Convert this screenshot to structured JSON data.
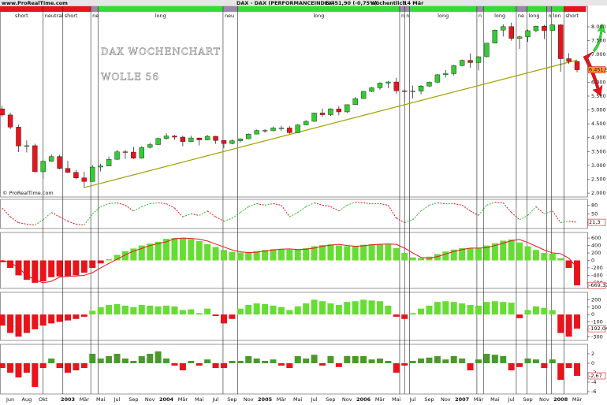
{
  "header": {
    "source": "www.ProRealTime.com",
    "title": "DAX - DAX (PERFORMANCEINDEX)",
    "quote": "6.451,90 (-0,75%)",
    "period": "Wöchentlich",
    "date": "14 Mär"
  },
  "chart_data": [
    {
      "type": "candlestick",
      "categories": [
        null,
        "Jun",
        null,
        "Aug",
        null,
        "Okt",
        null,
        null,
        "2003",
        null,
        "Mär",
        null,
        "Mai",
        null,
        "Jul",
        null,
        "Sep",
        null,
        "Nov",
        null,
        "2004",
        null,
        "Mär",
        null,
        "Mai",
        null,
        "Jul",
        null,
        "Sep",
        null,
        "Nov",
        null,
        "2005",
        null,
        "Mär",
        null,
        "Mai",
        null,
        "Jul",
        null,
        "Sep",
        null,
        "Nov",
        null,
        "2006",
        null,
        "Mär",
        null,
        "Mai",
        null,
        "Jul",
        null,
        "Sep",
        null,
        "Nov",
        null,
        "2007",
        null,
        "Mär",
        null,
        "Mai",
        null,
        "Jul",
        null,
        "Sep",
        null,
        "Nov",
        null,
        "2008",
        null,
        "Mär"
      ],
      "open": [
        5040,
        4820,
        4380,
        3700,
        3710,
        2770,
        3150,
        3320,
        2890,
        2750,
        2550,
        2420,
        2940,
        2980,
        3220,
        3490,
        3480,
        3260,
        3650,
        3750,
        3970,
        4060,
        4020,
        3860,
        3990,
        3920,
        4050,
        3900,
        3790,
        3890,
        3960,
        4130,
        4260,
        4250,
        4350,
        4350,
        4180,
        4460,
        4590,
        4890,
        4830,
        5040,
        4930,
        5190,
        5410,
        5670,
        5800,
        5970,
        6010,
        5690,
        5680,
        5680,
        5860,
        6000,
        6270,
        6310,
        6600,
        6790,
        6710,
        6920,
        7410,
        7880,
        8010,
        7580,
        7640,
        7860,
        8020,
        7870,
        8070,
        6850,
        6750
      ],
      "high": [
        5150,
        4900,
        4470,
        3900,
        3780,
        3200,
        3400,
        3380,
        3160,
        2840,
        2770,
        3010,
        3060,
        3320,
        3560,
        3560,
        3660,
        3690,
        3820,
        4000,
        4160,
        4100,
        4070,
        4070,
        4000,
        4100,
        4060,
        3910,
        3930,
        3980,
        4150,
        4290,
        4310,
        4400,
        4430,
        4410,
        4490,
        4630,
        4900,
        5050,
        5060,
        5140,
        5200,
        5470,
        5690,
        5830,
        6000,
        6050,
        6160,
        5760,
        5880,
        5900,
        6020,
        6300,
        6440,
        6630,
        6820,
        7040,
        6940,
        7420,
        7900,
        8090,
        8150,
        7680,
        7900,
        8040,
        8070,
        8100,
        8100,
        7050,
        6780
      ],
      "low": [
        4750,
        4300,
        3480,
        3470,
        2750,
        2520,
        3130,
        2860,
        2720,
        2500,
        2190,
        2410,
        2780,
        2970,
        3200,
        3230,
        3230,
        3240,
        3610,
        3740,
        3930,
        3920,
        3690,
        3850,
        3720,
        3900,
        3780,
        3620,
        3760,
        3830,
        3950,
        4120,
        4180,
        4230,
        4240,
        4140,
        4170,
        4450,
        4580,
        4760,
        4790,
        4810,
        4900,
        5180,
        5400,
        5640,
        5730,
        5790,
        5590,
        5290,
        5420,
        5560,
        5830,
        5960,
        6170,
        6240,
        6570,
        6520,
        6430,
        6900,
        7400,
        7650,
        7500,
        7200,
        7460,
        7800,
        7560,
        7850,
        6380,
        6660,
        6360
      ],
      "close": [
        4820,
        4380,
        3700,
        3710,
        2770,
        3150,
        3320,
        2890,
        2750,
        2550,
        2420,
        2940,
        2980,
        3220,
        3490,
        3480,
        3260,
        3650,
        3750,
        3970,
        4060,
        4020,
        3860,
        3990,
        3920,
        4050,
        3900,
        3790,
        3890,
        3960,
        4130,
        4260,
        4250,
        4350,
        4350,
        4180,
        4460,
        4590,
        4890,
        4830,
        5040,
        4930,
        5190,
        5410,
        5670,
        5800,
        5970,
        6010,
        5690,
        5680,
        5680,
        5860,
        6000,
        6270,
        6310,
        6600,
        6790,
        6710,
        6920,
        7410,
        7880,
        8010,
        7580,
        7640,
        7860,
        8020,
        7870,
        8070,
        6850,
        6750,
        6450
      ],
      "ylim": [
        1860,
        8740
      ],
      "yticks": [
        {
          "value": 2000,
          "label": "2.000"
        },
        {
          "value": 2500,
          "label": "2.500"
        },
        {
          "value": 3000,
          "label": "3.000"
        },
        {
          "value": 3500,
          "label": "3.500"
        },
        {
          "value": 4000,
          "label": "4.000"
        },
        {
          "value": 4500,
          "label": "4.500"
        },
        {
          "value": 5000,
          "label": "5.000"
        },
        {
          "value": 5500,
          "label": "5.500"
        },
        {
          "value": 6000,
          "label": "6.000"
        },
        {
          "value": 6500,
          "label": "6.500"
        },
        {
          "value": 7000,
          "label": "7.000"
        },
        {
          "value": 7500,
          "label": "7.500"
        },
        {
          "value": 8000,
          "label": "8.000"
        }
      ],
      "colors": {
        "up": "#33cc33",
        "down": "#e8141c"
      },
      "annotations": [
        "DAX WOCHENCHART",
        "WOLLE 56"
      ],
      "copyright": "© ProRealTime.com",
      "last_price": {
        "value": 6451.9,
        "label": "6.451,90"
      },
      "trendline": {
        "x": [
          10,
          70
        ],
        "y": [
          2200,
          6800
        ],
        "color": "#a0a000"
      },
      "signals": {
        "boundaries": [
          -0.25,
          5,
          7.4,
          10.8,
          11.7,
          26.9,
          28.7,
          48.4,
          49,
          49.6,
          57.8,
          58.6,
          62.6,
          63.9,
          66.3,
          66.9,
          68.4,
          71.1
        ],
        "segments": [
          {
            "label": "short",
            "color": "#e8141c"
          },
          {
            "label": "neutral",
            "color": "#e8141c"
          },
          {
            "label": "short",
            "color": "#e8141c"
          },
          {
            "label": "ne",
            "color": "#9a88aa"
          },
          {
            "label": "long",
            "color": "#33dd33"
          },
          {
            "label": "neu",
            "color": "#9a88aa"
          },
          {
            "label": "long",
            "color": "#33dd33"
          },
          {
            "label": "n",
            "color": "#9a88aa"
          },
          {
            "label": "n",
            "color": "#9a88aa"
          },
          {
            "label": "long",
            "color": "#33dd33"
          },
          {
            "label": "n",
            "color": "#9a88aa"
          },
          {
            "label": "long",
            "color": "#33dd33"
          },
          {
            "label": "ne",
            "color": "#9a88aa"
          },
          {
            "label": "long",
            "color": "#33dd33"
          },
          {
            "label": "n",
            "color": "#9a88aa"
          },
          {
            "label": "lon",
            "color": "#33dd33"
          },
          {
            "label": "short",
            "color": "#e8141c"
          }
        ]
      }
    },
    {
      "type": "line",
      "values": [
        70,
        40,
        20,
        15,
        12,
        30,
        55,
        40,
        25,
        15,
        12,
        50,
        75,
        85,
        88,
        80,
        60,
        75,
        85,
        88,
        85,
        70,
        40,
        50,
        45,
        60,
        40,
        25,
        35,
        55,
        75,
        85,
        80,
        85,
        80,
        40,
        55,
        75,
        88,
        80,
        75,
        60,
        80,
        90,
        88,
        85,
        85,
        80,
        35,
        20,
        30,
        60,
        80,
        88,
        85,
        85,
        80,
        60,
        45,
        80,
        90,
        88,
        55,
        30,
        45,
        75,
        50,
        60,
        20,
        25,
        21.3
      ],
      "ylim": [
        0,
        100
      ],
      "yticks": [
        20,
        50,
        80
      ],
      "colors": {
        "up": "#33bb33",
        "down": "#e8141c"
      },
      "last_value": {
        "value": 21.3,
        "label": "21,3"
      }
    },
    {
      "type": "bar",
      "values": [
        -50,
        -200,
        -400,
        -520,
        -600,
        -560,
        -450,
        -430,
        -420,
        -400,
        -330,
        -200,
        -80,
        30,
        150,
        250,
        320,
        400,
        450,
        500,
        580,
        600,
        590,
        570,
        520,
        440,
        360,
        280,
        230,
        210,
        220,
        250,
        280,
        300,
        310,
        290,
        300,
        330,
        380,
        410,
        430,
        400,
        380,
        390,
        420,
        430,
        440,
        430,
        330,
        200,
        80,
        60,
        100,
        170,
        240,
        290,
        330,
        330,
        340,
        400,
        460,
        530,
        560,
        480,
        380,
        280,
        200,
        180,
        60,
        -200,
        -669.37
      ],
      "signal_line": {
        "values": [
          0,
          -50,
          -200,
          -400,
          -520,
          -600,
          -560,
          -450,
          -430,
          -420,
          -400,
          -330,
          -200,
          -80,
          30,
          150,
          250,
          320,
          400,
          450,
          500,
          580,
          600,
          590,
          570,
          520,
          440,
          360,
          280,
          230,
          210,
          220,
          250,
          280,
          300,
          310,
          290,
          300,
          330,
          380,
          410,
          430,
          400,
          380,
          390,
          420,
          430,
          440,
          430,
          330,
          200,
          80,
          60,
          100,
          170,
          240,
          290,
          330,
          330,
          340,
          400,
          460,
          530,
          560,
          480,
          380,
          280,
          200,
          180,
          60,
          -200
        ],
        "color": "#e8141c"
      },
      "ylim": [
        -750,
        750
      ],
      "yticks": [
        -600,
        -400,
        -200,
        0,
        200,
        400,
        600
      ],
      "colors": {
        "up": "#66dd33",
        "down": "#e8141c"
      },
      "last_value": {
        "value": -669.37,
        "label": "-669,37"
      }
    },
    {
      "type": "bar",
      "values": [
        -150,
        -250,
        -300,
        -250,
        -200,
        -150,
        -120,
        -100,
        -80,
        -60,
        -30,
        50,
        100,
        130,
        140,
        120,
        100,
        130,
        120,
        110,
        120,
        110,
        60,
        70,
        20,
        80,
        -20,
        -120,
        -60,
        80,
        130,
        150,
        140,
        120,
        100,
        60,
        110,
        150,
        200,
        180,
        150,
        130,
        170,
        180,
        200,
        190,
        180,
        120,
        -30,
        -60,
        20,
        80,
        120,
        170,
        180,
        170,
        150,
        130,
        120,
        170,
        180,
        170,
        160,
        -50,
        60,
        110,
        90,
        60,
        -250,
        -300,
        -192.04
      ],
      "ylim": [
        -350,
        300
      ],
      "yticks": [
        -300,
        -200,
        -100,
        0,
        100,
        200
      ],
      "colors": {
        "up": "#66dd33",
        "down": "#e8141c"
      },
      "last_value": {
        "value": -192.04,
        "label": "-192,04"
      }
    },
    {
      "type": "bar",
      "values": [
        -1,
        -2,
        -3,
        -2,
        -5,
        -1,
        1,
        -1,
        -2,
        -1.5,
        -1,
        2,
        1,
        1.5,
        2,
        1,
        0.5,
        1.5,
        2,
        2.5,
        1,
        -0.5,
        -1.5,
        0.5,
        -0.5,
        0.8,
        -1,
        -1,
        0.5,
        0.5,
        1.5,
        1,
        0.5,
        0.8,
        -0.5,
        -1,
        1.5,
        1,
        1.8,
        -0.5,
        1.5,
        -0.8,
        1.5,
        1.5,
        1.5,
        0.8,
        1,
        0.5,
        -2,
        -0.5,
        0.5,
        1,
        1.2,
        1.5,
        0.8,
        1.5,
        1,
        -1.5,
        0.8,
        2,
        1.8,
        1.5,
        -1.5,
        -0.8,
        1,
        0.8,
        -1,
        0.8,
        -3.5,
        -1,
        -2.67
      ],
      "ylim": [
        -6.5,
        4
      ],
      "yticks": [
        -6,
        -4,
        -2,
        0,
        2
      ],
      "colors": {
        "up": "#4a9a2a",
        "down": "#e8141c"
      },
      "last_value": {
        "value": -2.67,
        "label": "-2,67"
      }
    }
  ]
}
